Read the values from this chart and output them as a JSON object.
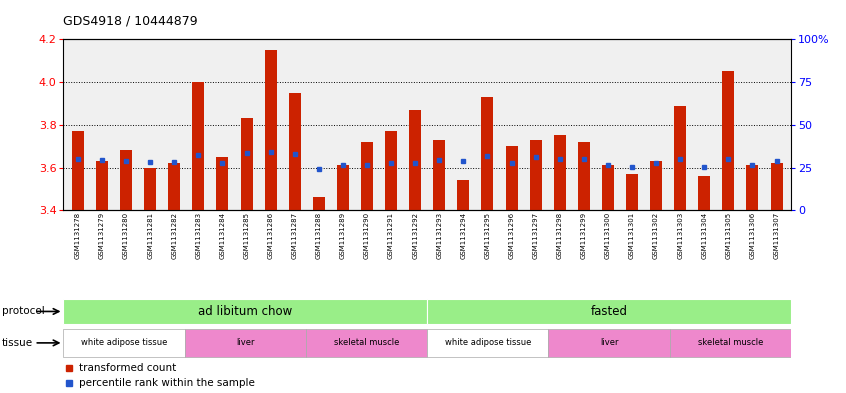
{
  "title": "GDS4918 / 10444879",
  "samples": [
    "GSM1131278",
    "GSM1131279",
    "GSM1131280",
    "GSM1131281",
    "GSM1131282",
    "GSM1131283",
    "GSM1131284",
    "GSM1131285",
    "GSM1131286",
    "GSM1131287",
    "GSM1131288",
    "GSM1131289",
    "GSM1131290",
    "GSM1131291",
    "GSM1131292",
    "GSM1131293",
    "GSM1131294",
    "GSM1131295",
    "GSM1131296",
    "GSM1131297",
    "GSM1131298",
    "GSM1131299",
    "GSM1131300",
    "GSM1131301",
    "GSM1131302",
    "GSM1131303",
    "GSM1131304",
    "GSM1131305",
    "GSM1131306",
    "GSM1131307"
  ],
  "bar_values": [
    3.77,
    3.63,
    3.68,
    3.6,
    3.62,
    4.0,
    3.65,
    3.83,
    4.15,
    3.95,
    3.46,
    3.61,
    3.72,
    3.77,
    3.87,
    3.73,
    3.54,
    3.93,
    3.7,
    3.73,
    3.75,
    3.72,
    3.61,
    3.57,
    3.63,
    3.89,
    3.56,
    4.05,
    3.61,
    3.62
  ],
  "percentile_values": [
    3.64,
    3.635,
    3.632,
    3.624,
    3.624,
    3.66,
    3.622,
    3.67,
    3.672,
    3.663,
    3.592,
    3.613,
    3.612,
    3.622,
    3.622,
    3.633,
    3.632,
    3.653,
    3.622,
    3.651,
    3.642,
    3.641,
    3.613,
    3.603,
    3.621,
    3.642,
    3.602,
    3.641,
    3.613,
    3.631
  ],
  "bar_color": "#cc2200",
  "percentile_color": "#2255cc",
  "ymin": 3.4,
  "ymax": 4.2,
  "yticks": [
    3.4,
    3.6,
    3.8,
    4.0,
    4.2
  ],
  "right_ytick_vals": [
    0,
    25,
    50,
    75,
    100
  ],
  "right_ylabels": [
    "0",
    "25",
    "50",
    "75",
    "100%"
  ],
  "protocol_labels": [
    "ad libitum chow",
    "fasted"
  ],
  "protocol_starts": [
    0,
    15
  ],
  "protocol_ends": [
    15,
    30
  ],
  "protocol_color": "#99ee88",
  "tissue_labels": [
    "white adipose tissue",
    "liver",
    "skeletal muscle",
    "white adipose tissue",
    "liver",
    "skeletal muscle"
  ],
  "tissue_starts": [
    0,
    5,
    10,
    15,
    20,
    25
  ],
  "tissue_ends": [
    5,
    10,
    15,
    20,
    25,
    30
  ],
  "tissue_colors": [
    "#ffffff",
    "#ee88cc",
    "#ee88cc",
    "#ffffff",
    "#ee88cc",
    "#ee88cc"
  ],
  "legend_transformed": "transformed count",
  "legend_percentile": "percentile rank within the sample",
  "dotted_gridlines": [
    3.6,
    3.8,
    4.0
  ],
  "chart_bg": "#f0f0f0"
}
